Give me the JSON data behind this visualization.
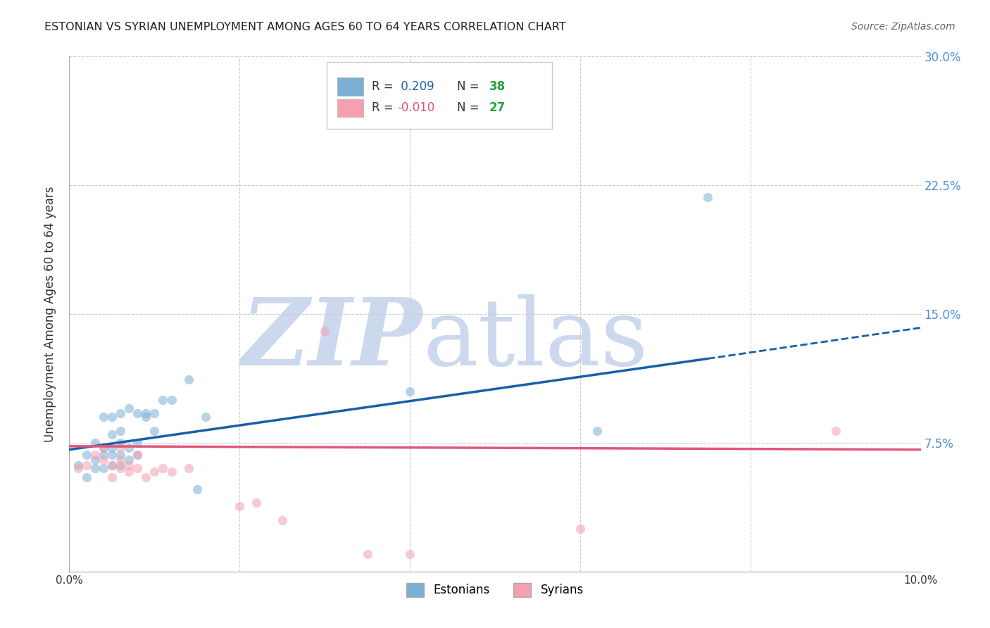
{
  "title": "ESTONIAN VS SYRIAN UNEMPLOYMENT AMONG AGES 60 TO 64 YEARS CORRELATION CHART",
  "source": "Source: ZipAtlas.com",
  "ylabel": "Unemployment Among Ages 60 to 64 years",
  "xlim": [
    0.0,
    0.1
  ],
  "ylim": [
    0.0,
    0.3
  ],
  "yticks": [
    0.075,
    0.15,
    0.225,
    0.3
  ],
  "ytick_labels": [
    "7.5%",
    "15.0%",
    "22.5%",
    "30.0%"
  ],
  "xticks": [
    0.0,
    0.02,
    0.04,
    0.06,
    0.08,
    0.1
  ],
  "xtick_labels": [
    "0.0%",
    "",
    "",
    "",
    "",
    "10.0%"
  ],
  "grid_color": "#cccccc",
  "background_color": "#ffffff",
  "watermark_zip": "ZIP",
  "watermark_atlas": "atlas",
  "watermark_color": "#ccd8ee",
  "estonian_color": "#7bafd4",
  "syrian_color": "#f4a0b0",
  "estonian_line_color": "#1a5fa8",
  "syrian_line_color": "#e05878",
  "R_color_blue": "#2060b0",
  "R_color_pink": "#e05070",
  "N_color_blue": "#28a040",
  "N_color_pink": "#28a040",
  "dot_size": 90,
  "dot_alpha": 0.55,
  "estonian_x": [
    0.001,
    0.002,
    0.002,
    0.003,
    0.003,
    0.003,
    0.004,
    0.004,
    0.004,
    0.004,
    0.005,
    0.005,
    0.005,
    0.005,
    0.005,
    0.006,
    0.006,
    0.006,
    0.006,
    0.006,
    0.007,
    0.007,
    0.007,
    0.008,
    0.008,
    0.008,
    0.009,
    0.009,
    0.01,
    0.01,
    0.011,
    0.012,
    0.014,
    0.015,
    0.016,
    0.04,
    0.062,
    0.075
  ],
  "estonian_y": [
    0.062,
    0.055,
    0.068,
    0.06,
    0.065,
    0.075,
    0.06,
    0.068,
    0.072,
    0.09,
    0.062,
    0.068,
    0.072,
    0.08,
    0.09,
    0.062,
    0.068,
    0.075,
    0.082,
    0.092,
    0.065,
    0.072,
    0.095,
    0.068,
    0.075,
    0.092,
    0.09,
    0.092,
    0.082,
    0.092,
    0.1,
    0.1,
    0.112,
    0.048,
    0.09,
    0.105,
    0.082,
    0.218
  ],
  "syrian_x": [
    0.001,
    0.002,
    0.003,
    0.004,
    0.004,
    0.005,
    0.005,
    0.006,
    0.006,
    0.006,
    0.007,
    0.007,
    0.008,
    0.008,
    0.009,
    0.01,
    0.011,
    0.012,
    0.014,
    0.02,
    0.022,
    0.025,
    0.03,
    0.035,
    0.04,
    0.06,
    0.09
  ],
  "syrian_y": [
    0.06,
    0.062,
    0.068,
    0.065,
    0.072,
    0.055,
    0.062,
    0.06,
    0.065,
    0.072,
    0.058,
    0.062,
    0.06,
    0.068,
    0.055,
    0.058,
    0.06,
    0.058,
    0.06,
    0.038,
    0.04,
    0.03,
    0.14,
    0.01,
    0.01,
    0.025,
    0.082
  ],
  "estonian_trend_x0": 0.0,
  "estonian_trend_y0": 0.071,
  "estonian_trend_x1": 0.075,
  "estonian_trend_y1": 0.124,
  "estonian_trend_x2": 0.1,
  "estonian_trend_y2": 0.142,
  "syrian_trend_x0": 0.0,
  "syrian_trend_y0": 0.073,
  "syrian_trend_x1": 0.1,
  "syrian_trend_y1": 0.071,
  "figsize": [
    14.06,
    8.92
  ],
  "dpi": 100
}
